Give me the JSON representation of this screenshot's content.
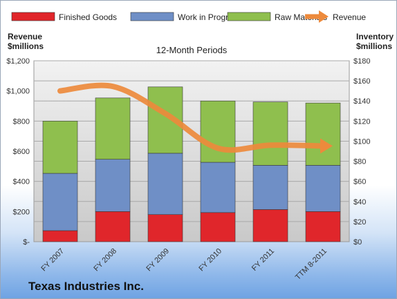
{
  "chart_data": {
    "type": "bar",
    "stacked": true,
    "title": "12-Month Periods",
    "categories": [
      "FY 2007",
      "FY 2008",
      "FY 2009",
      "FY 2010",
      "FY 2011",
      "TTM 8-2011"
    ],
    "series": [
      {
        "name": "Finished Goods",
        "axis": "right",
        "color": "#e0262b",
        "values": [
          11,
          30,
          27,
          29,
          32,
          30
        ]
      },
      {
        "name": "Work in Progress",
        "axis": "right",
        "color": "#6f8fc6",
        "values": [
          57,
          52,
          61,
          50,
          44,
          46
        ]
      },
      {
        "name": "Raw Materials",
        "axis": "right",
        "color": "#8fbf4e",
        "values": [
          52,
          61,
          66,
          61,
          63,
          62
        ]
      }
    ],
    "line_series": {
      "name": "Revenue",
      "axis": "left",
      "color": "#ed8a3c",
      "values": [
        1000,
        1030,
        850,
        620,
        640,
        635
      ]
    },
    "left_axis": {
      "label_line1": "Revenue",
      "label_line2": "$millions",
      "ylim": [
        0,
        1200
      ],
      "ticks": [
        "$-",
        "$200",
        "$400",
        "$600",
        "$800",
        "$1,000",
        "$1,200"
      ]
    },
    "right_axis": {
      "label_line1": "Inventory",
      "label_line2": "$millions",
      "ylim": [
        0,
        180
      ],
      "ticks": [
        "$0",
        "$20",
        "$40",
        "$60",
        "$80",
        "$100",
        "$120",
        "$140",
        "$160",
        "$180"
      ]
    },
    "grid": true,
    "legend_position": "top"
  },
  "footer": {
    "company": "Texas Industries Inc."
  }
}
